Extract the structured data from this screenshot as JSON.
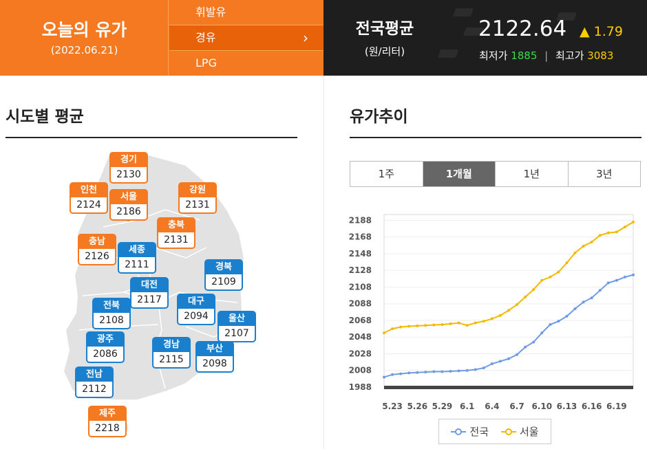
{
  "header": {
    "title": "오늘의 유가",
    "date": "(2022.06.21)",
    "fuel_menu": [
      {
        "label": "휘발유",
        "active": false
      },
      {
        "label": "경유",
        "active": true
      },
      {
        "label": "LPG",
        "active": false
      }
    ],
    "chevron_icon": "chevron-right-icon",
    "national": {
      "title": "전국평균",
      "unit": "(원/리터)",
      "price": "2122.64",
      "change": "▲ 1.79",
      "min_label": "최저가",
      "min_value": "1885",
      "max_label": "최고가",
      "max_value": "3083",
      "separator": "|"
    }
  },
  "regional": {
    "title": "시도별 평균",
    "regions": [
      {
        "name": "경기",
        "value": "2130",
        "color": "orange"
      },
      {
        "name": "인천",
        "value": "2124",
        "color": "orange"
      },
      {
        "name": "서울",
        "value": "2186",
        "color": "orange"
      },
      {
        "name": "강원",
        "value": "2131",
        "color": "orange"
      },
      {
        "name": "충북",
        "value": "2131",
        "color": "orange"
      },
      {
        "name": "충남",
        "value": "2126",
        "color": "orange"
      },
      {
        "name": "세종",
        "value": "2111",
        "color": "blue"
      },
      {
        "name": "경북",
        "value": "2109",
        "color": "blue"
      },
      {
        "name": "대전",
        "value": "2117",
        "color": "blue"
      },
      {
        "name": "전북",
        "value": "2108",
        "color": "blue"
      },
      {
        "name": "대구",
        "value": "2094",
        "color": "blue"
      },
      {
        "name": "울산",
        "value": "2107",
        "color": "blue"
      },
      {
        "name": "광주",
        "value": "2086",
        "color": "blue"
      },
      {
        "name": "경남",
        "value": "2115",
        "color": "blue"
      },
      {
        "name": "부산",
        "value": "2098",
        "color": "blue"
      },
      {
        "name": "전남",
        "value": "2112",
        "color": "blue"
      },
      {
        "name": "제주",
        "value": "2218",
        "color": "orange"
      }
    ]
  },
  "trend": {
    "title": "유가추이",
    "tabs": [
      {
        "label": "1주",
        "active": false
      },
      {
        "label": "1개월",
        "active": true
      },
      {
        "label": "1년",
        "active": false
      },
      {
        "label": "3년",
        "active": false
      }
    ]
  },
  "chart_data": {
    "type": "line",
    "x": [
      "5.22",
      "5.23",
      "5.24",
      "5.25",
      "5.26",
      "5.27",
      "5.28",
      "5.29",
      "5.30",
      "5.31",
      "6.1",
      "6.2",
      "6.3",
      "6.4",
      "6.5",
      "6.6",
      "6.7",
      "6.8",
      "6.9",
      "6.10",
      "6.11",
      "6.12",
      "6.13",
      "6.14",
      "6.15",
      "6.16",
      "6.17",
      "6.18",
      "6.19",
      "6.20",
      "6.21"
    ],
    "xticks": [
      "5.23",
      "5.26",
      "5.29",
      "6.1",
      "6.4",
      "6.7",
      "6.10",
      "6.13",
      "6.16",
      "6.19"
    ],
    "yticks": [
      1988,
      2008,
      2028,
      2048,
      2068,
      2088,
      2108,
      2128,
      2148,
      2168,
      2188
    ],
    "ylim": [
      1988,
      2190
    ],
    "series": [
      {
        "name": "전국",
        "color": "#6e9be6",
        "values": [
          2000,
          2003,
          2004,
          2005,
          2005.5,
          2006,
          2006.5,
          2006.5,
          2007,
          2007.5,
          2008,
          2009,
          2011,
          2016,
          2019,
          2022,
          2027,
          2036,
          2042,
          2053,
          2063,
          2067,
          2073,
          2082,
          2090,
          2095,
          2104,
          2113,
          2116,
          2120,
          2122.6
        ]
      },
      {
        "name": "서울",
        "color": "#f5b800",
        "values": [
          2053,
          2058,
          2060,
          2061,
          2061.5,
          2062,
          2062.5,
          2063,
          2064,
          2065,
          2062,
          2065,
          2067,
          2070,
          2074,
          2080,
          2087,
          2096,
          2105,
          2116,
          2120,
          2126,
          2137,
          2149,
          2157,
          2162,
          2170,
          2173,
          2174,
          2180,
          2186
        ]
      }
    ]
  }
}
